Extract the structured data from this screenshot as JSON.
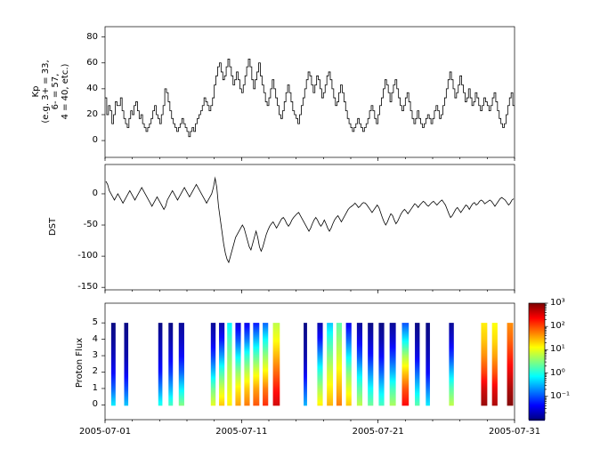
{
  "figure": {
    "background": "#ffffff",
    "text_color": "#000000",
    "line_color": "#000000"
  },
  "x_axis": {
    "tick_labels": [
      "2005-07-01",
      "2005-07-11",
      "2005-07-21",
      "2005-07-31"
    ],
    "tick_days": [
      0,
      10,
      20,
      30
    ],
    "range_days": 30
  },
  "chart_data": [
    {
      "type": "line",
      "name": "kp-index",
      "style": "steps",
      "ylabel": "Kp (e.g. 3+ = 33, 6- = 57, 4 = 40, etc.)",
      "ylabel_lines": [
        "Kp",
        "(e.g. 3+ = 33,",
        "6- = 57,",
        "4 = 40, etc.)"
      ],
      "x_start": "2005-07-01",
      "x_end": "2005-07-31",
      "points_per_day": 8,
      "yticks": [
        0,
        20,
        40,
        60,
        80
      ],
      "ylim": [
        -13,
        88
      ],
      "values": [
        33,
        20,
        27,
        23,
        13,
        20,
        30,
        27,
        27,
        33,
        23,
        17,
        13,
        10,
        17,
        23,
        20,
        27,
        30,
        23,
        17,
        20,
        13,
        10,
        7,
        10,
        13,
        17,
        23,
        27,
        20,
        17,
        13,
        20,
        27,
        40,
        37,
        30,
        23,
        17,
        13,
        10,
        7,
        10,
        13,
        17,
        13,
        10,
        7,
        3,
        7,
        10,
        7,
        13,
        17,
        20,
        23,
        27,
        33,
        30,
        27,
        23,
        27,
        33,
        43,
        50,
        57,
        60,
        53,
        47,
        50,
        57,
        63,
        57,
        50,
        43,
        47,
        53,
        47,
        40,
        37,
        43,
        50,
        57,
        63,
        57,
        47,
        40,
        47,
        53,
        60,
        50,
        43,
        37,
        30,
        27,
        33,
        40,
        47,
        40,
        33,
        27,
        20,
        17,
        23,
        30,
        37,
        43,
        37,
        30,
        23,
        20,
        17,
        13,
        20,
        27,
        33,
        40,
        47,
        53,
        50,
        43,
        37,
        43,
        50,
        47,
        40,
        33,
        37,
        43,
        50,
        53,
        47,
        40,
        33,
        27,
        30,
        37,
        43,
        37,
        30,
        23,
        17,
        13,
        10,
        7,
        10,
        13,
        17,
        13,
        10,
        7,
        10,
        13,
        17,
        23,
        27,
        23,
        17,
        13,
        20,
        27,
        33,
        40,
        47,
        43,
        37,
        30,
        37,
        43,
        47,
        40,
        33,
        27,
        23,
        27,
        33,
        37,
        30,
        23,
        17,
        13,
        17,
        23,
        17,
        13,
        10,
        13,
        17,
        20,
        17,
        13,
        17,
        23,
        27,
        23,
        17,
        20,
        27,
        33,
        40,
        47,
        53,
        47,
        40,
        33,
        37,
        43,
        50,
        43,
        37,
        30,
        33,
        40,
        33,
        27,
        30,
        37,
        33,
        27,
        23,
        27,
        33,
        30,
        27,
        23,
        27,
        33,
        37,
        30,
        23,
        17,
        13,
        10,
        13,
        20,
        27,
        33,
        37,
        27
      ]
    },
    {
      "type": "line",
      "name": "dst-index",
      "ylabel": "DST",
      "x_start": "2005-07-01",
      "x_end": "2005-07-31",
      "points_per_day": 8,
      "yticks": [
        0,
        -50,
        -100,
        -150
      ],
      "ylim": [
        -154,
        47
      ],
      "values": [
        20,
        15,
        5,
        0,
        -5,
        -10,
        -5,
        0,
        -5,
        -10,
        -15,
        -10,
        -5,
        0,
        5,
        0,
        -5,
        -10,
        -5,
        0,
        5,
        10,
        5,
        0,
        -5,
        -10,
        -15,
        -20,
        -15,
        -10,
        -5,
        -10,
        -15,
        -20,
        -25,
        -20,
        -10,
        -5,
        0,
        5,
        0,
        -5,
        -10,
        -5,
        0,
        5,
        10,
        5,
        0,
        -5,
        0,
        5,
        10,
        15,
        10,
        5,
        0,
        -5,
        -10,
        -15,
        -10,
        -5,
        0,
        10,
        25,
        10,
        -20,
        -40,
        -60,
        -80,
        -95,
        -105,
        -110,
        -100,
        -90,
        -80,
        -70,
        -65,
        -60,
        -55,
        -50,
        -55,
        -65,
        -75,
        -85,
        -90,
        -80,
        -70,
        -60,
        -70,
        -85,
        -92,
        -85,
        -75,
        -65,
        -58,
        -52,
        -48,
        -45,
        -50,
        -55,
        -50,
        -45,
        -40,
        -38,
        -42,
        -48,
        -52,
        -48,
        -42,
        -38,
        -35,
        -32,
        -30,
        -35,
        -40,
        -45,
        -50,
        -55,
        -60,
        -55,
        -48,
        -42,
        -38,
        -42,
        -48,
        -52,
        -48,
        -42,
        -48,
        -55,
        -60,
        -55,
        -48,
        -42,
        -38,
        -35,
        -40,
        -45,
        -40,
        -35,
        -30,
        -25,
        -22,
        -20,
        -18,
        -15,
        -18,
        -22,
        -20,
        -16,
        -14,
        -15,
        -18,
        -22,
        -26,
        -30,
        -26,
        -22,
        -18,
        -22,
        -30,
        -38,
        -45,
        -50,
        -45,
        -38,
        -32,
        -35,
        -42,
        -48,
        -44,
        -38,
        -32,
        -28,
        -25,
        -28,
        -32,
        -28,
        -24,
        -20,
        -16,
        -18,
        -22,
        -18,
        -15,
        -12,
        -14,
        -18,
        -20,
        -17,
        -14,
        -12,
        -15,
        -18,
        -15,
        -12,
        -10,
        -14,
        -18,
        -25,
        -32,
        -38,
        -35,
        -30,
        -25,
        -22,
        -26,
        -30,
        -26,
        -22,
        -18,
        -20,
        -25,
        -20,
        -16,
        -14,
        -18,
        -16,
        -12,
        -10,
        -12,
        -16,
        -14,
        -12,
        -10,
        -12,
        -16,
        -20,
        -16,
        -12,
        -8,
        -6,
        -8,
        -10,
        -14,
        -18,
        -15,
        -10,
        -8
      ]
    },
    {
      "type": "heatmap",
      "name": "proton-flux",
      "ylabel": "Proton Flux",
      "yticks": [
        0,
        1,
        2,
        3,
        4,
        5
      ],
      "ylim": [
        -0.9,
        6.2
      ],
      "colormap": "jet",
      "color_scale": "log10",
      "color_range_log10": [
        -2,
        3
      ],
      "colorbar_tick_labels": [
        "10⁻¹",
        "10⁰",
        "10¹",
        "10²",
        "10³"
      ],
      "colorbar_tick_log10": [
        -1,
        0,
        1,
        2,
        3
      ],
      "stripes": [
        {
          "day": 0.45,
          "width": 0.32,
          "levels": [
            -0.2,
            -0.9,
            -1.4,
            -1.7,
            -1.9,
            -2
          ]
        },
        {
          "day": 1.4,
          "width": 0.3,
          "levels": [
            -0.4,
            -1.0,
            -1.5,
            -1.8,
            -1.9,
            -2
          ]
        },
        {
          "day": 3.9,
          "width": 0.3,
          "levels": [
            0.0,
            -0.7,
            -1.3,
            -1.6,
            -1.8,
            -2
          ]
        },
        {
          "day": 4.65,
          "width": 0.32,
          "levels": [
            0.2,
            -0.5,
            -1.1,
            -1.5,
            -1.8,
            -2
          ]
        },
        {
          "day": 5.4,
          "width": 0.4,
          "levels": [
            0.5,
            -0.2,
            -0.9,
            -1.4,
            -1.7,
            -1.9
          ]
        },
        {
          "day": 7.75,
          "width": 0.35,
          "levels": [
            1.0,
            0.4,
            -0.4,
            -1.1,
            -1.6,
            -1.9
          ]
        },
        {
          "day": 8.35,
          "width": 0.4,
          "levels": [
            1.4,
            0.9,
            0.2,
            -0.6,
            -1.3,
            -1.8
          ]
        },
        {
          "day": 8.95,
          "width": 0.35,
          "levels": [
            1.2,
            1.0,
            0.8,
            0.5,
            0.2,
            -0.2
          ]
        },
        {
          "day": 9.55,
          "width": 0.4,
          "levels": [
            1.6,
            1.2,
            0.6,
            -0.2,
            -1.0,
            -1.6
          ]
        },
        {
          "day": 10.2,
          "width": 0.4,
          "levels": [
            1.8,
            1.4,
            0.8,
            0.1,
            -0.8,
            -1.5
          ]
        },
        {
          "day": 10.85,
          "width": 0.45,
          "levels": [
            2.0,
            1.6,
            1.0,
            0.3,
            -0.5,
            -1.3
          ]
        },
        {
          "day": 11.55,
          "width": 0.4,
          "levels": [
            2.2,
            1.8,
            1.2,
            0.6,
            -0.1,
            -0.9
          ]
        },
        {
          "day": 12.3,
          "width": 0.5,
          "levels": [
            2.6,
            2.3,
            1.9,
            1.5,
            1.1,
            0.8
          ]
        },
        {
          "day": 14.55,
          "width": 0.25,
          "levels": [
            -0.5,
            -1.0,
            -1.5,
            -1.8,
            -1.9,
            -2
          ]
        },
        {
          "day": 15.55,
          "width": 0.4,
          "levels": [
            1.2,
            0.7,
            0.1,
            -0.6,
            -1.3,
            -1.8
          ]
        },
        {
          "day": 16.25,
          "width": 0.45,
          "levels": [
            1.5,
            1.2,
            0.9,
            0.5,
            0.1,
            -0.4
          ]
        },
        {
          "day": 16.95,
          "width": 0.4,
          "levels": [
            1.8,
            1.5,
            1.2,
            0.9,
            0.6,
            0.3
          ]
        },
        {
          "day": 17.65,
          "width": 0.4,
          "levels": [
            1.4,
            1.0,
            0.5,
            -0.2,
            -0.9,
            -1.5
          ]
        },
        {
          "day": 18.45,
          "width": 0.4,
          "levels": [
            0.8,
            0.3,
            -0.3,
            -1.0,
            -1.5,
            -1.9
          ]
        },
        {
          "day": 19.25,
          "width": 0.4,
          "levels": [
            0.4,
            -0.1,
            -0.7,
            -1.3,
            -1.7,
            -2
          ]
        },
        {
          "day": 20.05,
          "width": 0.4,
          "levels": [
            0.2,
            -0.3,
            -0.9,
            -1.4,
            -1.8,
            -2
          ]
        },
        {
          "day": 20.85,
          "width": 0.45,
          "levels": [
            0.7,
            0.2,
            -0.5,
            -1.1,
            -1.6,
            -1.9
          ]
        },
        {
          "day": 21.75,
          "width": 0.5,
          "levels": [
            2.4,
            2.0,
            1.4,
            0.7,
            -0.2,
            -1.0
          ]
        },
        {
          "day": 22.7,
          "width": 0.35,
          "levels": [
            0.3,
            -0.3,
            -0.9,
            -1.5,
            -1.8,
            -2
          ]
        },
        {
          "day": 23.5,
          "width": 0.3,
          "levels": [
            -0.2,
            -0.8,
            -1.4,
            -1.7,
            -1.9,
            -2
          ]
        },
        {
          "day": 25.2,
          "width": 0.35,
          "levels": [
            0.8,
            0.3,
            -0.4,
            -1.1,
            -1.6,
            -1.9
          ]
        },
        {
          "day": 27.55,
          "width": 0.45,
          "levels": [
            2.9,
            2.6,
            2.1,
            1.7,
            1.4,
            1.2
          ]
        },
        {
          "day": 28.35,
          "width": 0.4,
          "levels": [
            2.8,
            2.5,
            2.0,
            1.6,
            1.3,
            1.1
          ]
        },
        {
          "day": 29.45,
          "width": 0.45,
          "levels": [
            3.0,
            2.8,
            2.5,
            2.2,
            1.9,
            1.7
          ]
        }
      ]
    }
  ]
}
